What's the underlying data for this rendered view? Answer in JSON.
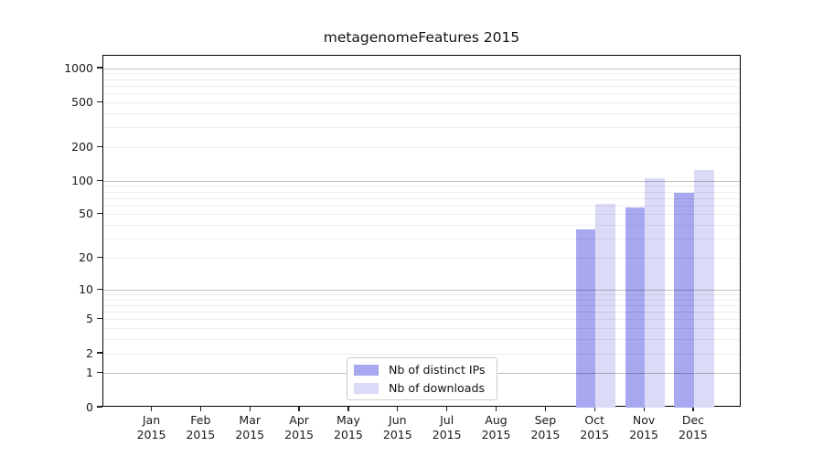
{
  "page": {
    "background": "#ffffff"
  },
  "chart_data": {
    "type": "bar",
    "title": "metagenomeFeatures 2015",
    "categories": [
      "Jan 2015",
      "Feb 2015",
      "Mar 2015",
      "Apr 2015",
      "May 2015",
      "Jun 2015",
      "Jul 2015",
      "Aug 2015",
      "Sep 2015",
      "Oct 2015",
      "Nov 2015",
      "Dec 2015"
    ],
    "series": [
      {
        "name": "Nb of distinct IPs",
        "color": "#a8a8f0",
        "values": [
          null,
          null,
          null,
          null,
          null,
          null,
          null,
          null,
          null,
          37,
          58,
          79
        ]
      },
      {
        "name": "Nb of downloads",
        "color": "#dbdbf8",
        "values": [
          null,
          null,
          null,
          null,
          null,
          null,
          null,
          null,
          null,
          63,
          106,
          125
        ]
      }
    ],
    "y_axis": {
      "scale": "log10(1+y)",
      "tick_values": [
        0,
        1,
        2,
        5,
        10,
        20,
        50,
        100,
        200,
        500,
        1000
      ],
      "ylim": [
        0,
        1300
      ],
      "grid_major": [
        1,
        10,
        100,
        1000
      ],
      "grid_minor": [
        2,
        3,
        4,
        5,
        6,
        7,
        8,
        9,
        20,
        30,
        40,
        50,
        60,
        70,
        80,
        90,
        200,
        300,
        400,
        500,
        600,
        700,
        800,
        900
      ]
    },
    "x_axis": {
      "label": "",
      "tick_label_lines": 2
    },
    "legend": {
      "position": "bottom-center",
      "border_color": "#cccccc"
    },
    "grid": {
      "horizontal": true,
      "vertical": false,
      "grid_above_bars": true
    },
    "colors": {
      "spine": "#000000",
      "grid_major": "#c2c2c2",
      "grid_minor": "#ededed",
      "text": "#1a1a1a"
    }
  }
}
